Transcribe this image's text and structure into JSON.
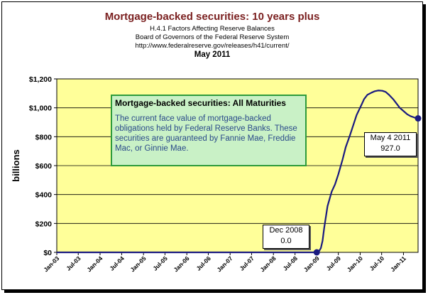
{
  "chart_data": {
    "type": "line",
    "title": "Mortgage-backed securities: 10 years plus",
    "subtitles": [
      "H.4.1 Factors Affecting Reserve Balances",
      "Board of Governors of the Federal Reserve System",
      "http://www.federalreserve.gov/releases/h41/current/"
    ],
    "date_line": "May 2011",
    "ylabel": "billions",
    "xlabel": "",
    "ylim": [
      0,
      1200
    ],
    "y_ticks": [
      0,
      200,
      400,
      600,
      800,
      1000,
      1200
    ],
    "y_tick_labels": [
      "$0",
      "$200",
      "$400",
      "$600",
      "$800",
      "$1,000",
      "$1,200"
    ],
    "x_range": [
      "2003-01-01",
      "2011-05-04"
    ],
    "x_tick_labels": [
      "Jan-03",
      "Jul-03",
      "Jan-04",
      "Jul-04",
      "Jan-05",
      "Jul-05",
      "Jan-06",
      "Jul-06",
      "Jan-07",
      "Jul-07",
      "Jan-08",
      "Jul-08",
      "Jan-09",
      "Jul-09",
      "Jan-10",
      "Jul-10",
      "Jan-11"
    ],
    "x_ticks": [
      "2003-01-01",
      "2003-07-01",
      "2004-01-01",
      "2004-07-01",
      "2005-01-01",
      "2005-07-01",
      "2006-01-01",
      "2006-07-01",
      "2007-01-01",
      "2007-07-01",
      "2008-01-01",
      "2008-07-01",
      "2009-01-01",
      "2009-07-01",
      "2010-01-01",
      "2010-07-01",
      "2011-01-01"
    ],
    "grid": "horizontal",
    "plot_background": "#ffff99",
    "line_color": "#1a1a80",
    "series": [
      {
        "x": [
          "2003-01-01",
          "2008-12-31",
          "2009-01-07",
          "2009-01-21",
          "2009-02-04",
          "2009-02-18",
          "2009-03-04",
          "2009-04-01",
          "2009-05-06",
          "2009-06-03",
          "2009-07-01",
          "2009-08-05",
          "2009-09-02",
          "2009-10-07",
          "2009-11-04",
          "2009-12-02",
          "2010-01-06",
          "2010-02-03",
          "2010-03-03",
          "2010-04-07",
          "2010-05-05",
          "2010-06-02",
          "2010-07-07",
          "2010-08-04",
          "2010-09-01",
          "2010-10-06",
          "2010-11-03",
          "2010-12-01",
          "2011-01-05",
          "2011-02-02",
          "2011-03-02",
          "2011-04-06",
          "2011-05-04"
        ],
        "values": [
          0,
          0,
          2,
          10,
          30,
          80,
          170,
          320,
          420,
          470,
          540,
          640,
          730,
          810,
          880,
          950,
          1010,
          1060,
          1090,
          1105,
          1115,
          1120,
          1118,
          1110,
          1090,
          1060,
          1030,
          1000,
          975,
          955,
          942,
          932,
          927.0
        ]
      }
    ],
    "annotations": [
      {
        "label": "Dec 2008",
        "value": "0.0"
      },
      {
        "label": "May 4 2011",
        "value": "927.0"
      }
    ],
    "note": {
      "title": "Mortgage-backed securities: All Maturities",
      "body": "The current face value of mortgage-backed obligations held by Federal Reserve Banks. These securities are guaranteed by Fannie Mae, Freddie  Mac, or Ginnie Mae."
    }
  }
}
